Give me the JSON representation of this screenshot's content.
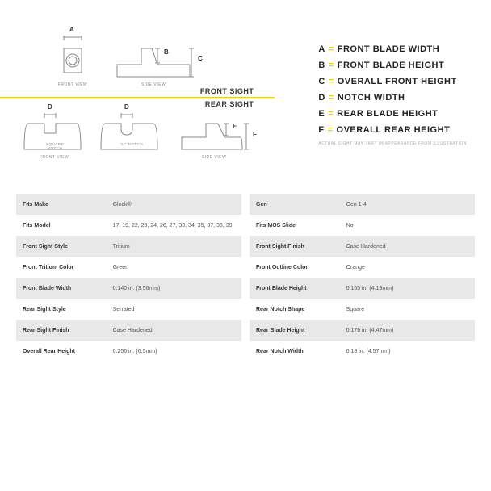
{
  "colors": {
    "accent": "#f0d000",
    "stroke": "#888888",
    "fill": "#ffffff",
    "text": "#333333",
    "row_alt": "#e8e8e8",
    "caption": "#888888"
  },
  "legend": {
    "items": [
      {
        "key": "A",
        "label": "FRONT BLADE WIDTH"
      },
      {
        "key": "B",
        "label": "FRONT BLADE HEIGHT"
      },
      {
        "key": "C",
        "label": "OVERALL FRONT HEIGHT"
      },
      {
        "key": "D",
        "label": "NOTCH WIDTH"
      },
      {
        "key": "E",
        "label": "REAR BLADE HEIGHT"
      },
      {
        "key": "F",
        "label": "OVERALL REAR HEIGHT"
      }
    ],
    "note": "ACTUAL SIGHT MAY VARY IN APPEARANCE FROM ILLUSTRATION"
  },
  "sections": {
    "front": "FRONT SIGHT",
    "rear": "REAR SIGHT"
  },
  "diagram": {
    "captions": {
      "front_front": "FRONT VIEW",
      "front_side": "SIDE VIEW",
      "rear_front": "FRONT VIEW",
      "rear_side": "SIDE VIEW",
      "square_notch": "SQUARE NOTCH",
      "u_notch": "\"U\" NOTCH"
    },
    "dims": {
      "A": "A",
      "B": "B",
      "C": "C",
      "D1": "D",
      "D2": "D",
      "E": "E",
      "F": "F"
    },
    "stroke_width": 1,
    "front_sight": {
      "front_view": {
        "w": 22,
        "h": 30,
        "circle_r": 6
      },
      "side_view": {
        "w": 80,
        "h": 32,
        "blade_h": 14
      }
    },
    "rear_sight": {
      "front_view": {
        "w": 70,
        "h": 32,
        "notch_w": 14,
        "notch_h": 12,
        "radius": 6
      },
      "side_view": {
        "w": 70,
        "h": 32,
        "blade_h": 14
      }
    }
  },
  "tables": {
    "left": [
      {
        "label": "Fits Make",
        "value": "Glock®"
      },
      {
        "label": "Fits Model",
        "value": "17, 19, 22, 23, 24, 26, 27, 33, 34, 35, 37, 38, 39"
      },
      {
        "label": "Front Sight Style",
        "value": "Tritium"
      },
      {
        "label": "Front Tritium Color",
        "value": "Green"
      },
      {
        "label": "Front Blade Width",
        "value": "0.140 in. (3.56mm)"
      },
      {
        "label": "Rear Sight Style",
        "value": "Serrated"
      },
      {
        "label": "Rear Sight Finish",
        "value": "Case Hardened"
      },
      {
        "label": "Overall Rear Height",
        "value": "0.256 in. (6.5mm)"
      }
    ],
    "right": [
      {
        "label": "Gen",
        "value": "Gen 1-4"
      },
      {
        "label": "Fits MOS Slide",
        "value": "No"
      },
      {
        "label": "Front Sight Finish",
        "value": "Case Hardened"
      },
      {
        "label": "Front Outline Color",
        "value": "Orange"
      },
      {
        "label": "Front Blade Height",
        "value": "0.165 in. (4.19mm)"
      },
      {
        "label": "Rear Notch Shape",
        "value": "Square"
      },
      {
        "label": "Rear Blade Height",
        "value": "0.176 in. (4.47mm)"
      },
      {
        "label": "Rear Notch Width",
        "value": "0.18 in. (4.57mm)"
      }
    ]
  }
}
